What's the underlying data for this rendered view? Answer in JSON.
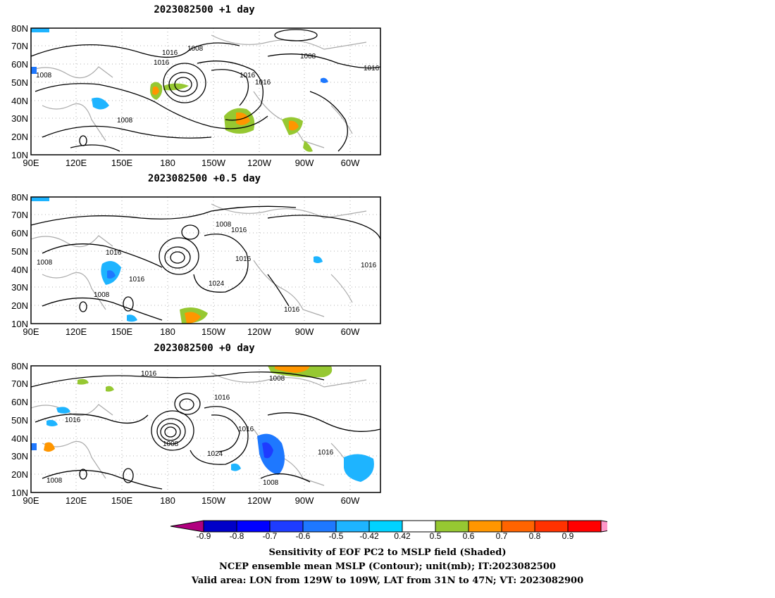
{
  "panels": [
    {
      "title": "2023082500  +1 day",
      "contour_labels": [
        "1016",
        "1008",
        "1016",
        "1008",
        "1008",
        "1016",
        "1016",
        "1016",
        "1008"
      ],
      "y_ticks": [
        "80N",
        "70N",
        "60N",
        "50N",
        "40N",
        "30N",
        "20N",
        "10N"
      ],
      "x_ticks": [
        "90E",
        "120E",
        "150E",
        "180",
        "150W",
        "120W",
        "90W",
        "60W"
      ]
    },
    {
      "title": "2023082500  +0.5 day",
      "contour_labels": [
        "1008",
        "1016",
        "1008",
        "1016",
        "1008",
        "1016",
        "1016",
        "1024",
        "1016",
        "1016"
      ],
      "y_ticks": [
        "80N",
        "70N",
        "60N",
        "50N",
        "40N",
        "30N",
        "20N",
        "10N"
      ],
      "x_ticks": [
        "90E",
        "120E",
        "150E",
        "180",
        "150W",
        "120W",
        "90W",
        "60W"
      ]
    },
    {
      "title": "2023082500  +0",
      "title_suffix": "day",
      "contour_labels": [
        "1016",
        "1008",
        "1016",
        "1016",
        "1008",
        "1016",
        "1024",
        "1016",
        "1008",
        "1008"
      ],
      "y_ticks": [
        "80N",
        "70N",
        "60N",
        "50N",
        "40N",
        "30N",
        "20N",
        "10N"
      ],
      "x_ticks": [
        "90E",
        "120E",
        "150E",
        "180",
        "150W",
        "120W",
        "90W",
        "60W"
      ]
    }
  ],
  "colorbar": {
    "labels": [
      "-0.9",
      "-0.8",
      "-0.7",
      "-0.6",
      "-0.5",
      "-0.42",
      "0.42",
      "0.5",
      "0.6",
      "0.7",
      "0.8",
      "0.9"
    ],
    "colors": [
      "#b0007f",
      "#0000c8",
      "#0000ff",
      "#1e3cff",
      "#1e78ff",
      "#1eb4ff",
      "#00d2ff",
      "#ffffff",
      "#96c832",
      "#ff9600",
      "#ff6400",
      "#ff3200",
      "#ff0000",
      "#ff96c8"
    ]
  },
  "captions": {
    "line1": "Sensitivity of EOF PC2 to MSLP field (Shaded)",
    "line2": "NCEP ensemble mean MSLP (Contour); unit(mb); IT:2023082500",
    "line3": "Valid area: LON from 129W to 109W, LAT from 31N to 47N; VT: 2023082900"
  }
}
